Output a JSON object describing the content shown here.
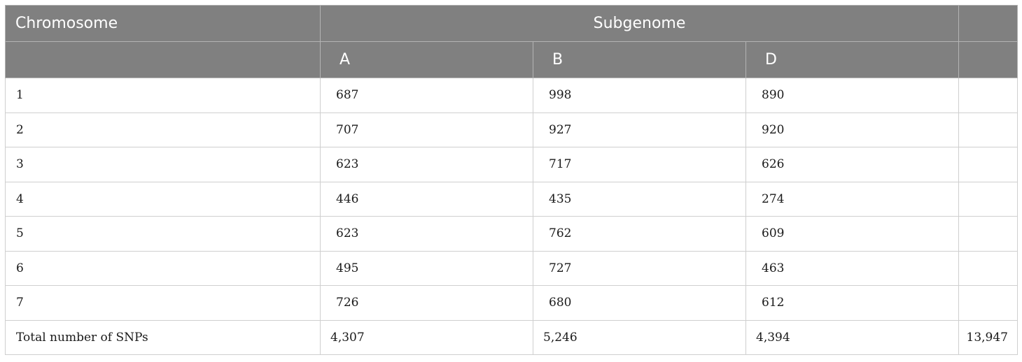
{
  "table": {
    "header": {
      "chromosome": "Chromosome",
      "subgenome": "Subgenome",
      "subcolumns": [
        "A",
        "B",
        "D"
      ]
    },
    "rows": [
      {
        "chromosome": "1",
        "values": [
          "687",
          "998",
          "890"
        ]
      },
      {
        "chromosome": "2",
        "values": [
          "707",
          "927",
          "920"
        ]
      },
      {
        "chromosome": "3",
        "values": [
          "623",
          "717",
          "626"
        ]
      },
      {
        "chromosome": "4",
        "values": [
          "446",
          "435",
          "274"
        ]
      },
      {
        "chromosome": "5",
        "values": [
          "623",
          "762",
          "609"
        ]
      },
      {
        "chromosome": "6",
        "values": [
          "495",
          "727",
          "463"
        ]
      },
      {
        "chromosome": "7",
        "values": [
          "726",
          "680",
          "612"
        ]
      }
    ],
    "total": {
      "label": "Total number of SNPs",
      "values": [
        "4,307",
        "5,246",
        "4,394"
      ],
      "grand_total": "13,947"
    }
  },
  "colors": {
    "header_background": "#808080",
    "header_text": "#ffffff",
    "body_text": "#1a1a1a",
    "grid_line": "#cfcfcf"
  }
}
